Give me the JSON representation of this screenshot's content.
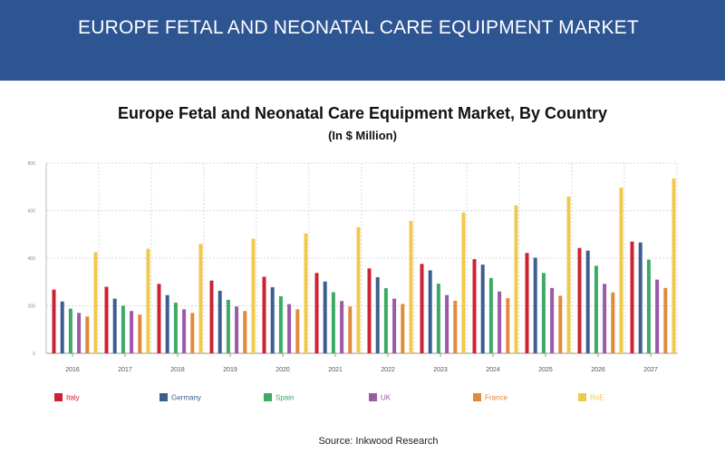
{
  "banner": {
    "title": "EUROPE FETAL AND NEONATAL CARE EQUIPMENT MARKET"
  },
  "source": "Source: Inkwood Research",
  "chart_data": {
    "type": "bar",
    "title": "Europe Fetal and Neonatal Care Equipment Market, By Country",
    "subtitle": "(In $ Million)",
    "xlabel": "",
    "ylabel": "",
    "categories": [
      "2016",
      "2017",
      "2018",
      "2019",
      "2020",
      "2021",
      "2022",
      "2023",
      "2024",
      "2025",
      "2026",
      "2027"
    ],
    "ylim": [
      0,
      800
    ],
    "yticks": [
      "0",
      "200",
      "400",
      "600",
      "800"
    ],
    "grid": true,
    "legend_position": "bottom",
    "series": [
      {
        "name": "Italy",
        "color": "#cc2233",
        "values": [
          268,
          280,
          292,
          306,
          322,
          338,
          357,
          376,
          396,
          422,
          443,
          470
        ]
      },
      {
        "name": "Germany",
        "color": "#3d5f8f",
        "values": [
          218,
          230,
          245,
          263,
          278,
          302,
          320,
          349,
          373,
          402,
          432,
          466
        ]
      },
      {
        "name": "Spain",
        "color": "#3daa66",
        "values": [
          188,
          200,
          213,
          225,
          240,
          257,
          274,
          293,
          317,
          338,
          368,
          394
        ]
      },
      {
        "name": "UK",
        "color": "#9b59a8",
        "values": [
          170,
          178,
          185,
          197,
          207,
          220,
          230,
          245,
          260,
          275,
          292,
          310
        ]
      },
      {
        "name": "France",
        "color": "#e08a3c",
        "values": [
          155,
          163,
          170,
          178,
          185,
          197,
          208,
          221,
          232,
          242,
          256,
          275
        ]
      },
      {
        "name": "RoE",
        "color": "#efc94c",
        "values": [
          425,
          440,
          460,
          482,
          504,
          531,
          557,
          592,
          622,
          659,
          697,
          735
        ]
      }
    ]
  }
}
